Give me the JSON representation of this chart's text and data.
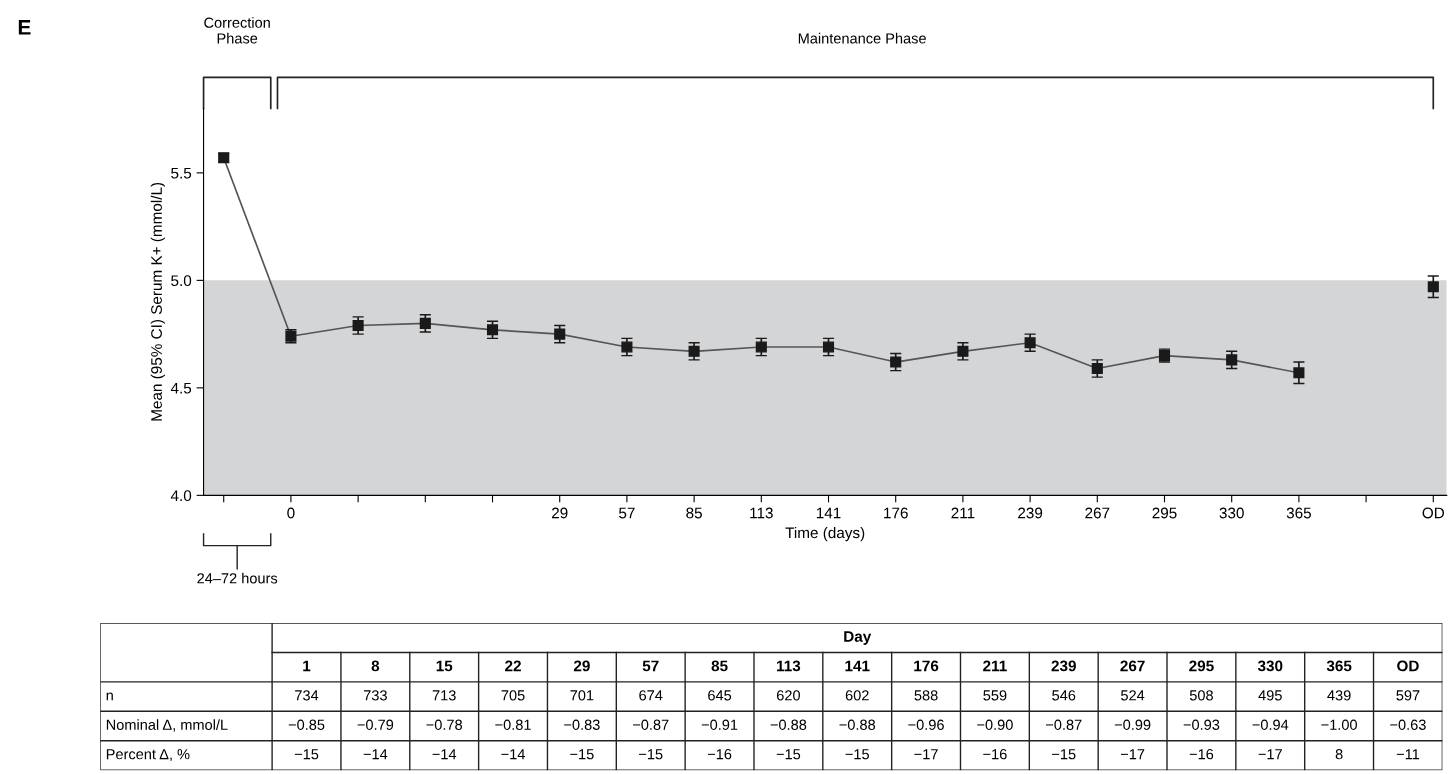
{
  "chart_data": [
    {
      "type": "line",
      "xlabel": "Time (days)",
      "ylabel": "Mean (95% CI) Serum K+ (mmol/L)",
      "annotations": [
        "E",
        "Correction Phase",
        "Maintenance Phase",
        "24–72 hours"
      ],
      "categories": [
        null,
        "0",
        null,
        null,
        null,
        "29",
        "57",
        "85",
        "113",
        "141",
        "176",
        "211",
        "239",
        "267",
        "295",
        "330",
        "365",
        null,
        "OD"
      ],
      "series": [
        {
          "color": "#1a1a1a",
          "values": [
            5.57,
            4.74,
            4.79,
            4.8,
            4.77,
            4.75,
            4.69,
            4.67,
            4.69,
            4.69,
            4.62,
            4.67,
            4.71,
            4.59,
            4.65,
            4.63,
            4.57,
            null,
            4.97
          ],
          "errors": [
            0.02,
            0.03,
            0.04,
            0.04,
            0.04,
            0.04,
            0.04,
            0.04,
            0.04,
            0.04,
            0.04,
            0.04,
            0.04,
            0.04,
            0.03,
            0.04,
            0.05,
            null,
            0.05
          ]
        }
      ],
      "ylim": [
        4.0,
        5.8
      ],
      "yticks": [
        {
          "value": 4.0,
          "label": "4.0"
        },
        {
          "value": 4.5,
          "label": "4.5"
        },
        {
          "value": 5.0,
          "label": "5.0"
        },
        {
          "value": 5.5,
          "label": "5.5"
        }
      ],
      "bands": [
        {
          "axis": "y",
          "from": 4.0,
          "to": 5.0,
          "color": "#d4d5d7"
        }
      ],
      "marker": "square",
      "line_style": "solid",
      "grid": false,
      "legend": false
    },
    {
      "type": "other",
      "title": "Day",
      "categories": [
        "1",
        "8",
        "15",
        "22",
        "29",
        "57",
        "85",
        "113",
        "141",
        "176",
        "211",
        "239",
        "267",
        "295",
        "330",
        "365",
        "OD"
      ],
      "y_categories": [
        "n",
        "Nominal Δ, mmol/L",
        "Percent Δ, %"
      ],
      "cell_labels": [
        [
          "734",
          "733",
          "713",
          "705",
          "701",
          "674",
          "645",
          "620",
          "602",
          "588",
          "559",
          "546",
          "524",
          "508",
          "495",
          "439",
          "597"
        ],
        [
          "−0.85",
          "−0.79",
          "−0.78",
          "−0.81",
          "−0.83",
          "−0.87",
          "−0.91",
          "−0.88",
          "−0.88",
          "−0.96",
          "−0.90",
          "−0.87",
          "−0.99",
          "−0.93",
          "−0.94",
          "−1.00",
          "−0.63"
        ],
        [
          "−15",
          "−14",
          "−14",
          "−14",
          "−15",
          "−15",
          "−16",
          "−15",
          "−15",
          "−17",
          "−16",
          "−15",
          "−17",
          "−16",
          "−17",
          "8",
          "−11"
        ]
      ]
    }
  ]
}
